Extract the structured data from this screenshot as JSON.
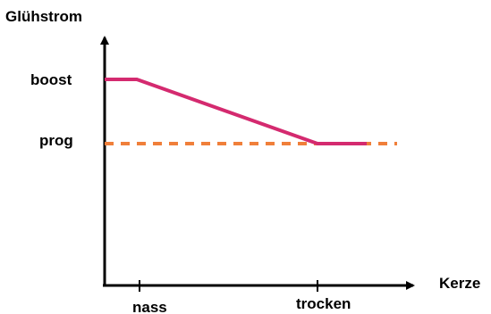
{
  "chart_data": {
    "type": "line",
    "ylabel": "Glühstrom",
    "xlabel": "Kerze",
    "y_levels": [
      {
        "label": "boost"
      },
      {
        "label": "prog"
      }
    ],
    "x_marks": [
      {
        "label": "nass"
      },
      {
        "label": "trocken"
      }
    ],
    "series": [
      {
        "style": "solid",
        "color": "#d42a6f"
      },
      {
        "style": "dashed",
        "color": "#f07f3a"
      }
    ]
  }
}
